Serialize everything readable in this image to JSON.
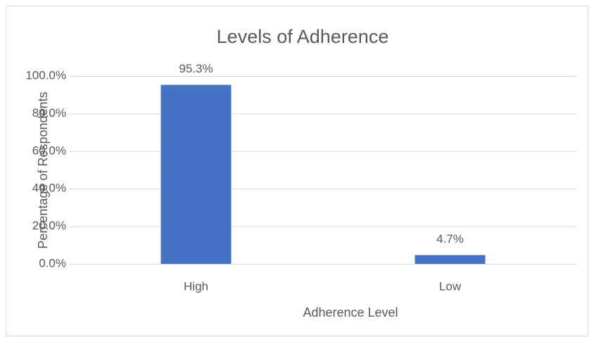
{
  "chart_data": {
    "type": "bar",
    "title": "Levels of Adherence",
    "x_label": "Adherence Level",
    "y_label": "Percentage of Respondents",
    "categories": [
      "High",
      "Low"
    ],
    "values": [
      95.3,
      4.7
    ],
    "value_labels": [
      "95.3%",
      "4.7%"
    ],
    "color": "#4472c4",
    "ylim": [
      0,
      100
    ],
    "yticks": [
      {
        "value": 0,
        "label": "0.0%"
      },
      {
        "value": 20,
        "label": "20.0%"
      },
      {
        "value": 40,
        "label": "40.0%"
      },
      {
        "value": 60,
        "label": "60.0%"
      },
      {
        "value": 80,
        "label": "80.0%"
      },
      {
        "value": 100,
        "label": "100.0%"
      }
    ],
    "grid": true
  }
}
